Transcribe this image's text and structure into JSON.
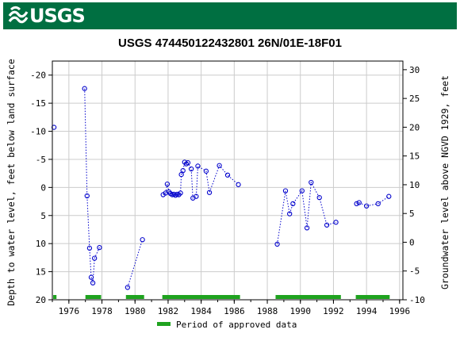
{
  "header": {
    "logo_text": "USGS",
    "logo_icon": "usgs-wave-icon",
    "banner_color": "#006f41"
  },
  "chart_data": {
    "type": "scatter",
    "title": "USGS 474450122432801 26N/01E-18F01",
    "ylabel_left": "Depth to water level, feet below land surface",
    "ylabel_right": "Groundwater level above NGVD 1929, feet",
    "x_range": [
      1975.0,
      1996.2
    ],
    "y_left_range": [
      -22.5,
      20
    ],
    "y_left_inverted": true,
    "y_right_range": [
      -10,
      31.5
    ],
    "x_ticks": [
      "1976",
      "1978",
      "1980",
      "1982",
      "1984",
      "1986",
      "1988",
      "1990",
      "1992",
      "1994",
      "1996"
    ],
    "y_left_ticks": [
      "-20",
      "-15",
      "-10",
      "-5",
      "0",
      "5",
      "10",
      "15",
      "20"
    ],
    "y_right_ticks": [
      "30",
      "25",
      "20",
      "15",
      "10",
      "5",
      "0",
      "-5",
      "-10"
    ],
    "grid": true,
    "series": [
      {
        "color": "#0000cc",
        "marker": "open-circle",
        "line": "dotted",
        "segments": [
          [
            [
              1975.1,
              -10.7
            ]
          ],
          [
            [
              1976.95,
              -17.6
            ],
            [
              1977.1,
              1.5
            ],
            [
              1977.25,
              10.8
            ],
            [
              1977.35,
              16.0
            ],
            [
              1977.45,
              17.0
            ],
            [
              1977.55,
              12.6
            ],
            [
              1977.85,
              10.7
            ]
          ],
          [
            [
              1979.55,
              17.8
            ],
            [
              1980.45,
              9.3
            ]
          ],
          [
            [
              1981.7,
              1.3
            ],
            [
              1981.85,
              1.0
            ],
            [
              1981.95,
              -0.6
            ],
            [
              1982.05,
              0.8
            ],
            [
              1982.15,
              1.1
            ],
            [
              1982.25,
              1.3
            ],
            [
              1982.35,
              1.2
            ],
            [
              1982.45,
              1.4
            ],
            [
              1982.55,
              1.2
            ],
            [
              1982.65,
              1.3
            ],
            [
              1982.75,
              1.0
            ],
            [
              1982.8,
              -2.3
            ],
            [
              1982.9,
              -3.0
            ],
            [
              1983.0,
              -4.5
            ],
            [
              1983.1,
              -4.2
            ],
            [
              1983.2,
              -4.4
            ],
            [
              1983.4,
              -3.3
            ],
            [
              1983.5,
              1.9
            ],
            [
              1983.7,
              1.6
            ],
            [
              1983.8,
              -3.8
            ],
            [
              1984.3,
              -2.9
            ],
            [
              1984.5,
              0.9
            ],
            [
              1985.1,
              -3.9
            ],
            [
              1985.6,
              -2.2
            ],
            [
              1986.25,
              -0.5
            ]
          ],
          [
            [
              1988.6,
              10.1
            ],
            [
              1989.1,
              0.6
            ],
            [
              1989.35,
              4.7
            ],
            [
              1989.55,
              2.9
            ],
            [
              1990.1,
              0.6
            ],
            [
              1990.4,
              7.2
            ],
            [
              1990.65,
              -0.9
            ],
            [
              1991.15,
              1.8
            ],
            [
              1991.6,
              6.7
            ],
            [
              1992.15,
              6.2
            ]
          ],
          [
            [
              1993.4,
              2.9
            ],
            [
              1993.55,
              2.7
            ],
            [
              1994.0,
              3.3
            ],
            [
              1994.7,
              2.9
            ],
            [
              1995.35,
              1.6
            ]
          ]
        ]
      }
    ],
    "approved_periods": [
      [
        1975.05,
        1975.25
      ],
      [
        1977.0,
        1977.95
      ],
      [
        1979.45,
        1980.55
      ],
      [
        1981.65,
        1986.35
      ],
      [
        1988.5,
        1992.45
      ],
      [
        1993.35,
        1995.4
      ]
    ],
    "approved_color": "#1fa31f",
    "legend": {
      "label": "Period of approved data",
      "position": "bottom-center"
    }
  }
}
